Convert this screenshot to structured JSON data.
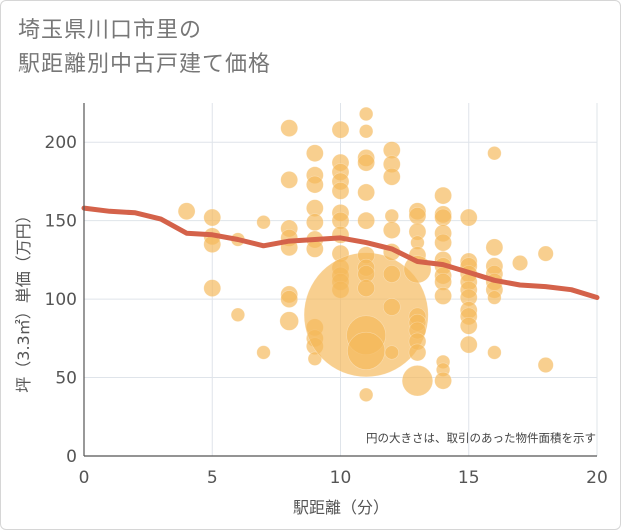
{
  "chart_data": {
    "type": "scatter",
    "title": "埼玉県川口市里の\n駅距離別中古戸建て価格",
    "xlabel": "駅距離（分）",
    "ylabel": "坪（3.3㎡）単価（万円）",
    "xlim": [
      0,
      20
    ],
    "ylim": [
      0,
      225
    ],
    "x_ticks": [
      0,
      5,
      10,
      15,
      20
    ],
    "y_ticks": [
      0,
      50,
      100,
      150,
      200
    ],
    "grid": true,
    "note": "円の大きさは、取引のあった物件面積を示す",
    "colors": {
      "bubble": "#f5b85a",
      "trend": "#d4624a",
      "grid": "#dfe4ea",
      "axis": "#555555"
    },
    "series": [
      {
        "kind": "bubbles",
        "points": [
          {
            "x": 4,
            "y": 156,
            "s": 1
          },
          {
            "x": 5,
            "y": 152,
            "s": 1
          },
          {
            "x": 5,
            "y": 140,
            "s": 1
          },
          {
            "x": 5,
            "y": 135,
            "s": 1
          },
          {
            "x": 5,
            "y": 107,
            "s": 1
          },
          {
            "x": 6,
            "y": 138,
            "s": 0.8
          },
          {
            "x": 6,
            "y": 90,
            "s": 0.8
          },
          {
            "x": 7,
            "y": 149,
            "s": 0.8
          },
          {
            "x": 7,
            "y": 66,
            "s": 0.8
          },
          {
            "x": 8,
            "y": 209,
            "s": 1
          },
          {
            "x": 8,
            "y": 176,
            "s": 1
          },
          {
            "x": 8,
            "y": 145,
            "s": 1
          },
          {
            "x": 8,
            "y": 139,
            "s": 1
          },
          {
            "x": 8,
            "y": 133,
            "s": 1
          },
          {
            "x": 8,
            "y": 103,
            "s": 1
          },
          {
            "x": 8,
            "y": 100,
            "s": 1
          },
          {
            "x": 8,
            "y": 86,
            "s": 1.1
          },
          {
            "x": 9,
            "y": 193,
            "s": 1
          },
          {
            "x": 9,
            "y": 179,
            "s": 1
          },
          {
            "x": 9,
            "y": 173,
            "s": 1
          },
          {
            "x": 9,
            "y": 158,
            "s": 1
          },
          {
            "x": 9,
            "y": 149,
            "s": 1
          },
          {
            "x": 9,
            "y": 138,
            "s": 1
          },
          {
            "x": 9,
            "y": 132,
            "s": 1
          },
          {
            "x": 9,
            "y": 82,
            "s": 1
          },
          {
            "x": 9,
            "y": 75,
            "s": 1
          },
          {
            "x": 9,
            "y": 70,
            "s": 1
          },
          {
            "x": 9,
            "y": 62,
            "s": 0.8
          },
          {
            "x": 10,
            "y": 208,
            "s": 1
          },
          {
            "x": 10,
            "y": 187,
            "s": 1
          },
          {
            "x": 10,
            "y": 181,
            "s": 1
          },
          {
            "x": 10,
            "y": 175,
            "s": 1
          },
          {
            "x": 10,
            "y": 169,
            "s": 1
          },
          {
            "x": 10,
            "y": 155,
            "s": 1
          },
          {
            "x": 10,
            "y": 150,
            "s": 1
          },
          {
            "x": 10,
            "y": 141,
            "s": 1
          },
          {
            "x": 10,
            "y": 129,
            "s": 1
          },
          {
            "x": 10,
            "y": 120,
            "s": 1
          },
          {
            "x": 10,
            "y": 115,
            "s": 1
          },
          {
            "x": 10,
            "y": 111,
            "s": 1
          },
          {
            "x": 10,
            "y": 106,
            "s": 1
          },
          {
            "x": 11,
            "y": 90,
            "s": 7.3
          },
          {
            "x": 11,
            "y": 77,
            "s": 2.3
          },
          {
            "x": 11,
            "y": 67,
            "s": 2.2
          },
          {
            "x": 11,
            "y": 218,
            "s": 0.8
          },
          {
            "x": 11,
            "y": 207,
            "s": 0.8
          },
          {
            "x": 11,
            "y": 190,
            "s": 1
          },
          {
            "x": 11,
            "y": 187,
            "s": 1
          },
          {
            "x": 11,
            "y": 168,
            "s": 1
          },
          {
            "x": 11,
            "y": 150,
            "s": 1
          },
          {
            "x": 11,
            "y": 128,
            "s": 1
          },
          {
            "x": 11,
            "y": 120,
            "s": 1
          },
          {
            "x": 11,
            "y": 116,
            "s": 1
          },
          {
            "x": 11,
            "y": 107,
            "s": 1
          },
          {
            "x": 11,
            "y": 39,
            "s": 0.8
          },
          {
            "x": 12,
            "y": 195,
            "s": 1
          },
          {
            "x": 12,
            "y": 186,
            "s": 1
          },
          {
            "x": 12,
            "y": 178,
            "s": 1
          },
          {
            "x": 12,
            "y": 153,
            "s": 0.8
          },
          {
            "x": 12,
            "y": 144,
            "s": 1
          },
          {
            "x": 12,
            "y": 130,
            "s": 1
          },
          {
            "x": 12,
            "y": 116,
            "s": 1
          },
          {
            "x": 12,
            "y": 95,
            "s": 1
          },
          {
            "x": 12,
            "y": 66,
            "s": 0.8
          },
          {
            "x": 13,
            "y": 156,
            "s": 1
          },
          {
            "x": 13,
            "y": 153,
            "s": 1
          },
          {
            "x": 13,
            "y": 143,
            "s": 1
          },
          {
            "x": 13,
            "y": 136,
            "s": 0.8
          },
          {
            "x": 13,
            "y": 128,
            "s": 1
          },
          {
            "x": 13,
            "y": 119,
            "s": 1.6
          },
          {
            "x": 13,
            "y": 89,
            "s": 1
          },
          {
            "x": 13,
            "y": 85,
            "s": 1
          },
          {
            "x": 13,
            "y": 80,
            "s": 1
          },
          {
            "x": 13,
            "y": 73,
            "s": 1
          },
          {
            "x": 13,
            "y": 66,
            "s": 1
          },
          {
            "x": 13,
            "y": 48,
            "s": 1.8
          },
          {
            "x": 14,
            "y": 166,
            "s": 1
          },
          {
            "x": 14,
            "y": 154,
            "s": 1
          },
          {
            "x": 14,
            "y": 152,
            "s": 1
          },
          {
            "x": 14,
            "y": 142,
            "s": 1
          },
          {
            "x": 14,
            "y": 136,
            "s": 1
          },
          {
            "x": 14,
            "y": 125,
            "s": 1
          },
          {
            "x": 14,
            "y": 121,
            "s": 1
          },
          {
            "x": 14,
            "y": 115,
            "s": 1
          },
          {
            "x": 14,
            "y": 111,
            "s": 1
          },
          {
            "x": 14,
            "y": 102,
            "s": 1
          },
          {
            "x": 14,
            "y": 60,
            "s": 0.8
          },
          {
            "x": 14,
            "y": 55,
            "s": 0.8
          },
          {
            "x": 14,
            "y": 48,
            "s": 1
          },
          {
            "x": 15,
            "y": 152,
            "s": 1
          },
          {
            "x": 15,
            "y": 124,
            "s": 1
          },
          {
            "x": 15,
            "y": 121,
            "s": 1
          },
          {
            "x": 15,
            "y": 116,
            "s": 1
          },
          {
            "x": 15,
            "y": 111,
            "s": 1
          },
          {
            "x": 15,
            "y": 106,
            "s": 1
          },
          {
            "x": 15,
            "y": 101,
            "s": 1
          },
          {
            "x": 15,
            "y": 93,
            "s": 1
          },
          {
            "x": 15,
            "y": 89,
            "s": 1
          },
          {
            "x": 15,
            "y": 83,
            "s": 1
          },
          {
            "x": 15,
            "y": 71,
            "s": 1
          },
          {
            "x": 16,
            "y": 193,
            "s": 0.8
          },
          {
            "x": 16,
            "y": 133,
            "s": 1
          },
          {
            "x": 16,
            "y": 121,
            "s": 1
          },
          {
            "x": 16,
            "y": 116,
            "s": 1
          },
          {
            "x": 16,
            "y": 111,
            "s": 1
          },
          {
            "x": 16,
            "y": 106,
            "s": 1
          },
          {
            "x": 16,
            "y": 101,
            "s": 0.8
          },
          {
            "x": 16,
            "y": 66,
            "s": 0.8
          },
          {
            "x": 17,
            "y": 123,
            "s": 0.9
          },
          {
            "x": 18,
            "y": 129,
            "s": 0.9
          },
          {
            "x": 18,
            "y": 58,
            "s": 0.9
          }
        ]
      },
      {
        "kind": "trend-line",
        "x": [
          0,
          1,
          2,
          3,
          4,
          5,
          6,
          7,
          8,
          9,
          10,
          11,
          12,
          13,
          14,
          15,
          16,
          17,
          18,
          19,
          20
        ],
        "y": [
          158,
          156,
          155,
          151,
          142,
          141,
          138,
          134,
          137,
          138,
          139,
          136,
          132,
          124,
          122,
          117,
          112,
          109,
          108,
          106,
          101
        ]
      }
    ]
  }
}
